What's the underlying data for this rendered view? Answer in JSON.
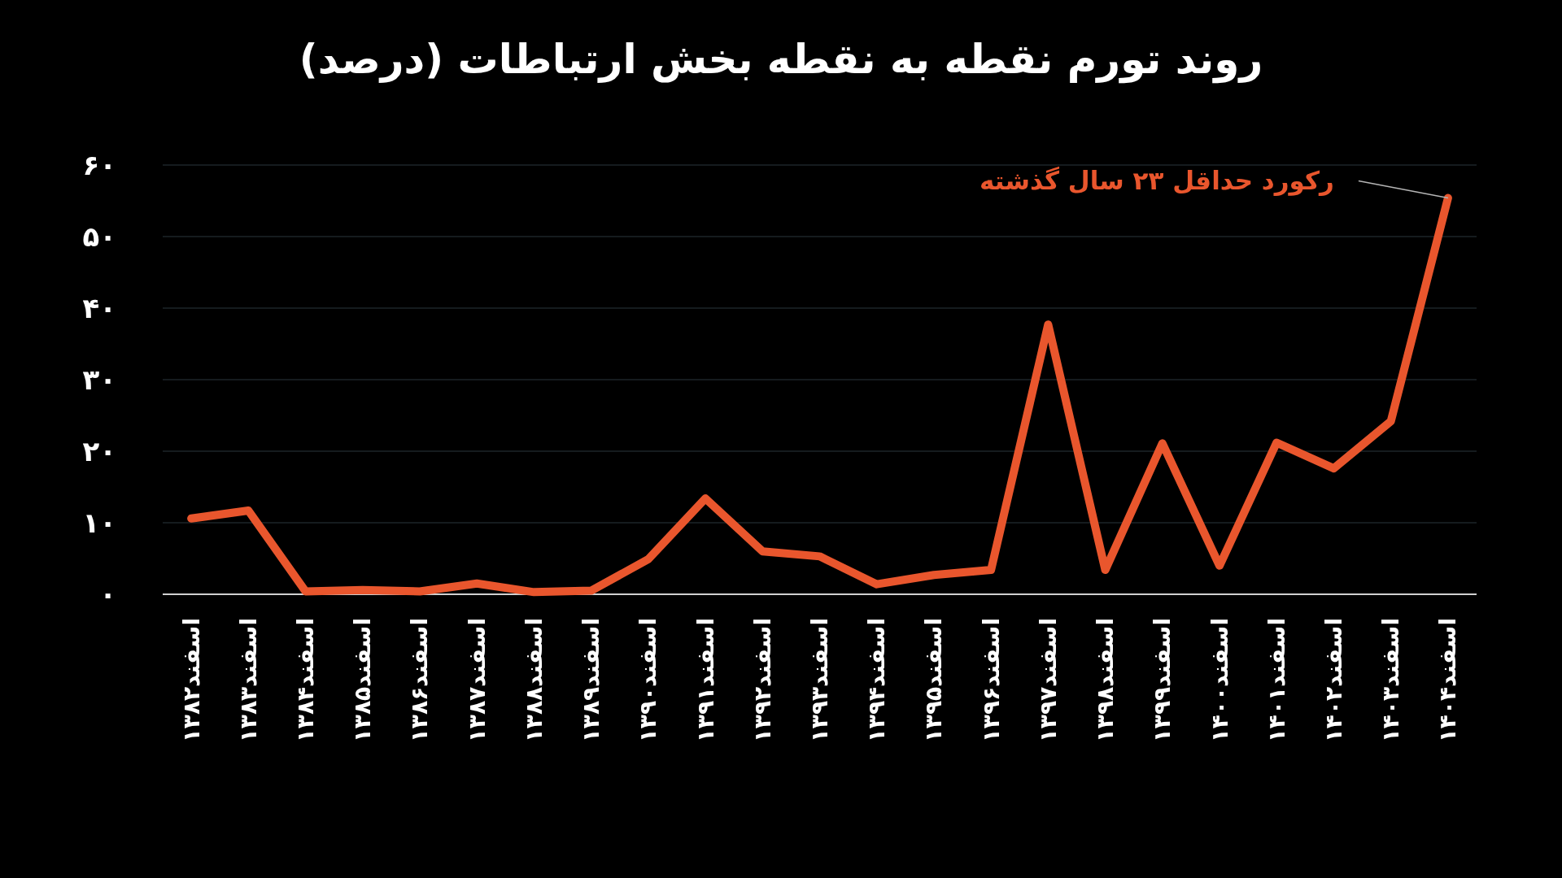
{
  "chart_data": {
    "type": "line",
    "title": "روند تورم نقطه به نقطه بخش ارتباطات (درصد)",
    "categories": [
      "اسفند۱۳۸۲",
      "اسفند۱۳۸۳",
      "اسفند۱۳۸۴",
      "اسفند۱۳۸۵",
      "اسفند۱۳۸۶",
      "اسفند۱۳۸۷",
      "اسفند۱۳۸۸",
      "اسفند۱۳۸۹",
      "اسفند۱۳۹۰",
      "اسفند۱۳۹۱",
      "اسفند۱۳۹۲",
      "اسفند۱۳۹۳",
      "اسفند۱۳۹۴",
      "اسفند۱۳۹۵",
      "اسفند۱۳۹۶",
      "اسفند۱۳۹۷",
      "اسفند۱۳۹۸",
      "اسفند۱۳۹۹",
      "اسفند۱۴۰۰",
      "اسفند۱۴۰۱",
      "اسفند۱۴۰۲",
      "اسفند۱۴۰۳",
      "اسفند۱۴۰۴"
    ],
    "series": [
      {
        "color": "#e9562d",
        "values": [
          10.6,
          11.7,
          0.4,
          0.6,
          0.4,
          1.5,
          0.3,
          0.5,
          4.9,
          13.4,
          6.0,
          5.3,
          1.4,
          2.7,
          3.4,
          37.7,
          3.4,
          21.1,
          4.0,
          21.2,
          17.6,
          24.2,
          55.4
        ]
      }
    ],
    "ylim": [
      0,
      60
    ],
    "yticks": [
      {
        "value": 0,
        "label": "۰"
      },
      {
        "value": 10,
        "label": "۱۰"
      },
      {
        "value": 20,
        "label": "۲۰"
      },
      {
        "value": 30,
        "label": "۳۰"
      },
      {
        "value": 40,
        "label": "۴۰"
      },
      {
        "value": 50,
        "label": "۵۰"
      },
      {
        "value": 60,
        "label": "۶۰"
      }
    ],
    "grid": "y",
    "annotations": [
      {
        "text": "رکورد حداقل ۲۳ سال گذشته",
        "x": "اسفند۱۴۰۴",
        "y": 55.4
      }
    ]
  }
}
